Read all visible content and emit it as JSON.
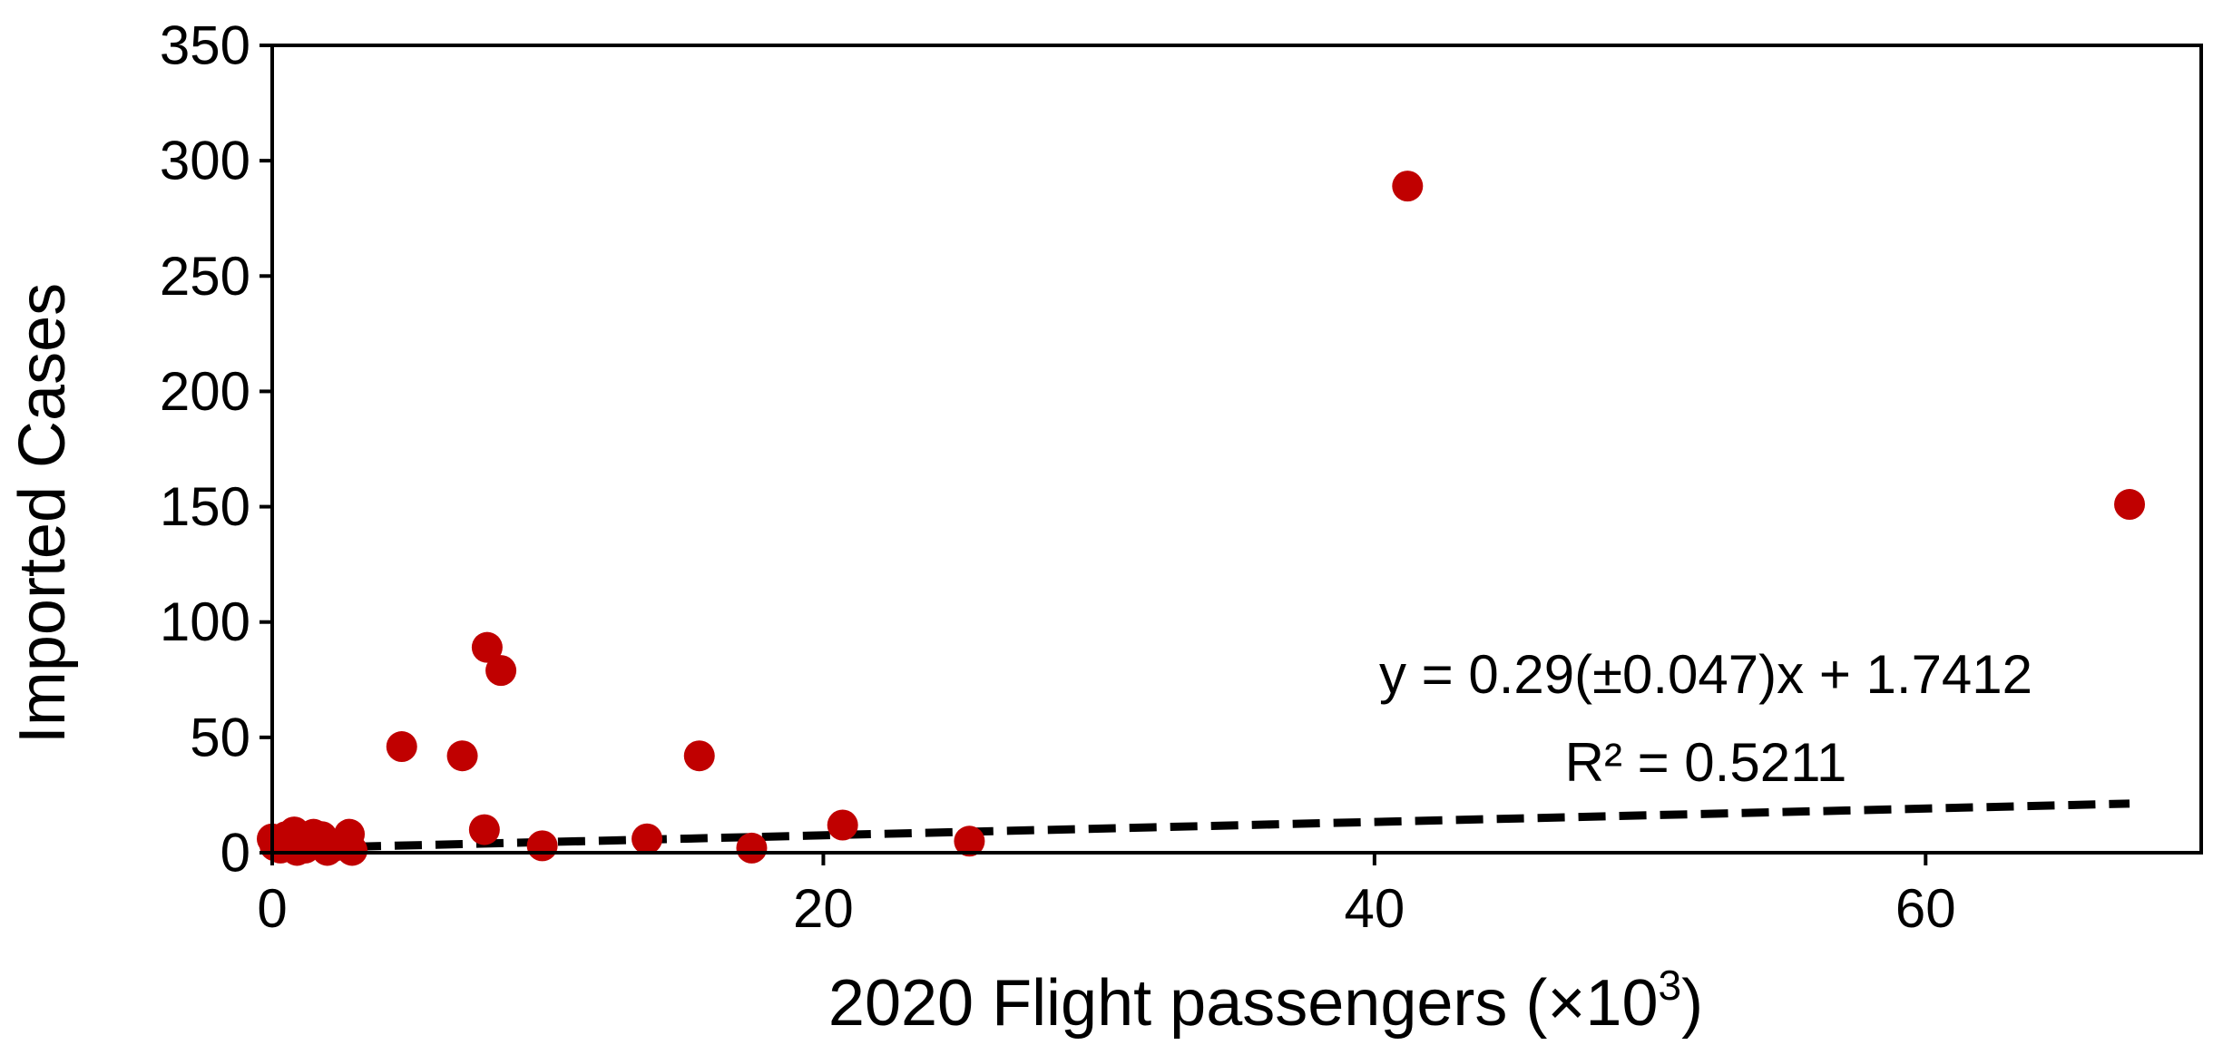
{
  "chart_data": {
    "type": "scatter",
    "title": "",
    "xlabel": "2020 Flight passengers (×10",
    "xlabel_sup": "3",
    "xlabel_suffix": ")",
    "ylabel": "Imported Cases",
    "xlim": [
      0,
      70
    ],
    "ylim": [
      0,
      350
    ],
    "x_ticks": [
      0,
      20,
      40,
      60
    ],
    "x_tick_labels": [
      "0",
      "20",
      "40",
      "60"
    ],
    "y_ticks": [
      0,
      50,
      100,
      150,
      200,
      250,
      300,
      350
    ],
    "y_tick_labels": [
      "0",
      "50",
      "100",
      "150",
      "200",
      "250",
      "300",
      "350"
    ],
    "grid": false,
    "legend": "none",
    "colors": {
      "points": "#c00000",
      "trendline": "#000000",
      "frame": "#000000"
    },
    "series": [
      {
        "points": [
          [
            0.0,
            6
          ],
          [
            0.1,
            3
          ],
          [
            0.3,
            2
          ],
          [
            0.5,
            7
          ],
          [
            0.8,
            9
          ],
          [
            0.9,
            1
          ],
          [
            1.0,
            4
          ],
          [
            1.2,
            2
          ],
          [
            1.5,
            8
          ],
          [
            1.8,
            7
          ],
          [
            2.0,
            1
          ],
          [
            2.3,
            3
          ],
          [
            2.8,
            8
          ],
          [
            2.9,
            1
          ],
          [
            4.7,
            46
          ],
          [
            6.9,
            42
          ],
          [
            7.7,
            10
          ],
          [
            7.8,
            89
          ],
          [
            8.3,
            79
          ],
          [
            9.8,
            3
          ],
          [
            13.6,
            6
          ],
          [
            15.5,
            42
          ],
          [
            17.4,
            2
          ],
          [
            20.7,
            12
          ],
          [
            25.3,
            5
          ],
          [
            41.2,
            289
          ],
          [
            67.4,
            151
          ]
        ]
      }
    ],
    "trendline": {
      "slope": 0.29,
      "intercept": 1.7412,
      "x_range": [
        0,
        67.4
      ],
      "style": "dashed"
    },
    "annotations": [
      "y = 0.29(±0.047)x + 1.7412",
      "R² = 0.5211"
    ]
  }
}
